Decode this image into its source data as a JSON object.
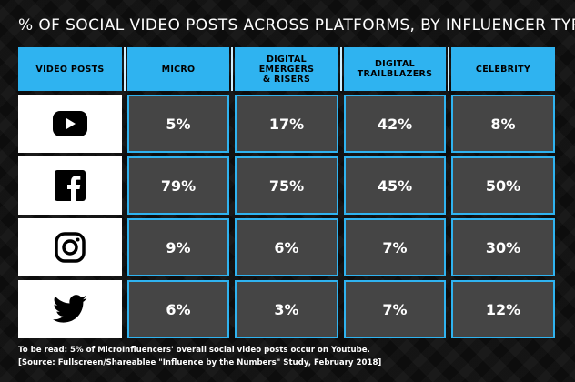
{
  "title": "% OF SOCIAL VIDEO POSTS ACROSS PLATFORMS, BY INFLUENCER TYPE",
  "footnote_line1": "To be read: 5% of MicroInfluencers' overall social video posts occur on Youtube.",
  "footnote_line2": "[Source: Fullscreen/Shareablee \"Influence by the Numbers\" Study, February 2018]",
  "colors": {
    "accent": "#2fb3f0",
    "cell": "#454545",
    "background": "#0d0d0d"
  },
  "chart_data": {
    "type": "table",
    "title": "% OF SOCIAL VIDEO POSTS ACROSS PLATFORMS, BY INFLUENCER TYPE",
    "row_header": "VIDEO POSTS",
    "columns": [
      "MICRO",
      "DIGITAL\nEMERGERS\n& RISERS",
      "DIGITAL\nTRAILBLAZERS",
      "CELEBRITY"
    ],
    "rows": [
      {
        "icon": "youtube-icon",
        "values": [
          "5%",
          "17%",
          "42%",
          "8%"
        ]
      },
      {
        "icon": "facebook-icon",
        "values": [
          "79%",
          "75%",
          "45%",
          "50%"
        ]
      },
      {
        "icon": "instagram-icon",
        "values": [
          "9%",
          "6%",
          "7%",
          "30%"
        ]
      },
      {
        "icon": "twitter-icon",
        "values": [
          "6%",
          "3%",
          "7%",
          "12%"
        ]
      }
    ]
  }
}
